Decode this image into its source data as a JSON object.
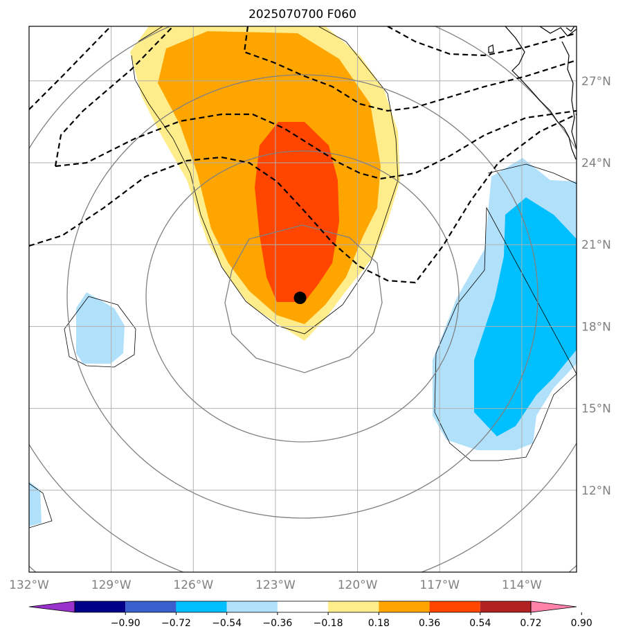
{
  "title": "2025070700 F060",
  "map": {
    "lat_range": [
      9,
      29
    ],
    "lon_range": [
      -132,
      -112
    ],
    "lat_ticks": [
      {
        "value": 12,
        "label": "12°N"
      },
      {
        "value": 15,
        "label": "15°N"
      },
      {
        "value": 18,
        "label": "18°N"
      },
      {
        "value": 21,
        "label": "21°N"
      },
      {
        "value": 24,
        "label": "24°N"
      },
      {
        "value": 27,
        "label": "27°N"
      }
    ],
    "lon_ticks": [
      {
        "value": -132,
        "label": "132°W"
      },
      {
        "value": -129,
        "label": "129°W"
      },
      {
        "value": -126,
        "label": "126°W"
      },
      {
        "value": -123,
        "label": "123°W"
      },
      {
        "value": -120,
        "label": "120°W"
      },
      {
        "value": -117,
        "label": "117°W"
      },
      {
        "value": -114,
        "label": "114°W"
      }
    ],
    "grid": true,
    "storm_center": {
      "lon": -122.1,
      "lat": 19.05
    },
    "colors": {
      "gridline": "#b0b0b0",
      "coastline": "#000000",
      "range_ring": "#808080",
      "dashed_contour": "#000000",
      "storm_marker": "#000000"
    }
  },
  "colorbar": {
    "levels": [
      "−0.90",
      "−0.72",
      "−0.54",
      "−0.36",
      "−0.18",
      "0.18",
      "0.36",
      "0.54",
      "0.72",
      "0.90"
    ],
    "colors": [
      "#9932cc",
      "#00008b",
      "#3a5fcd",
      "#00bfff",
      "#b0e0fa",
      "#ffffff",
      "#ffec8b",
      "#ffa500",
      "#ff4500",
      "#b22222",
      "#ff82ab"
    ],
    "extend": "both"
  }
}
